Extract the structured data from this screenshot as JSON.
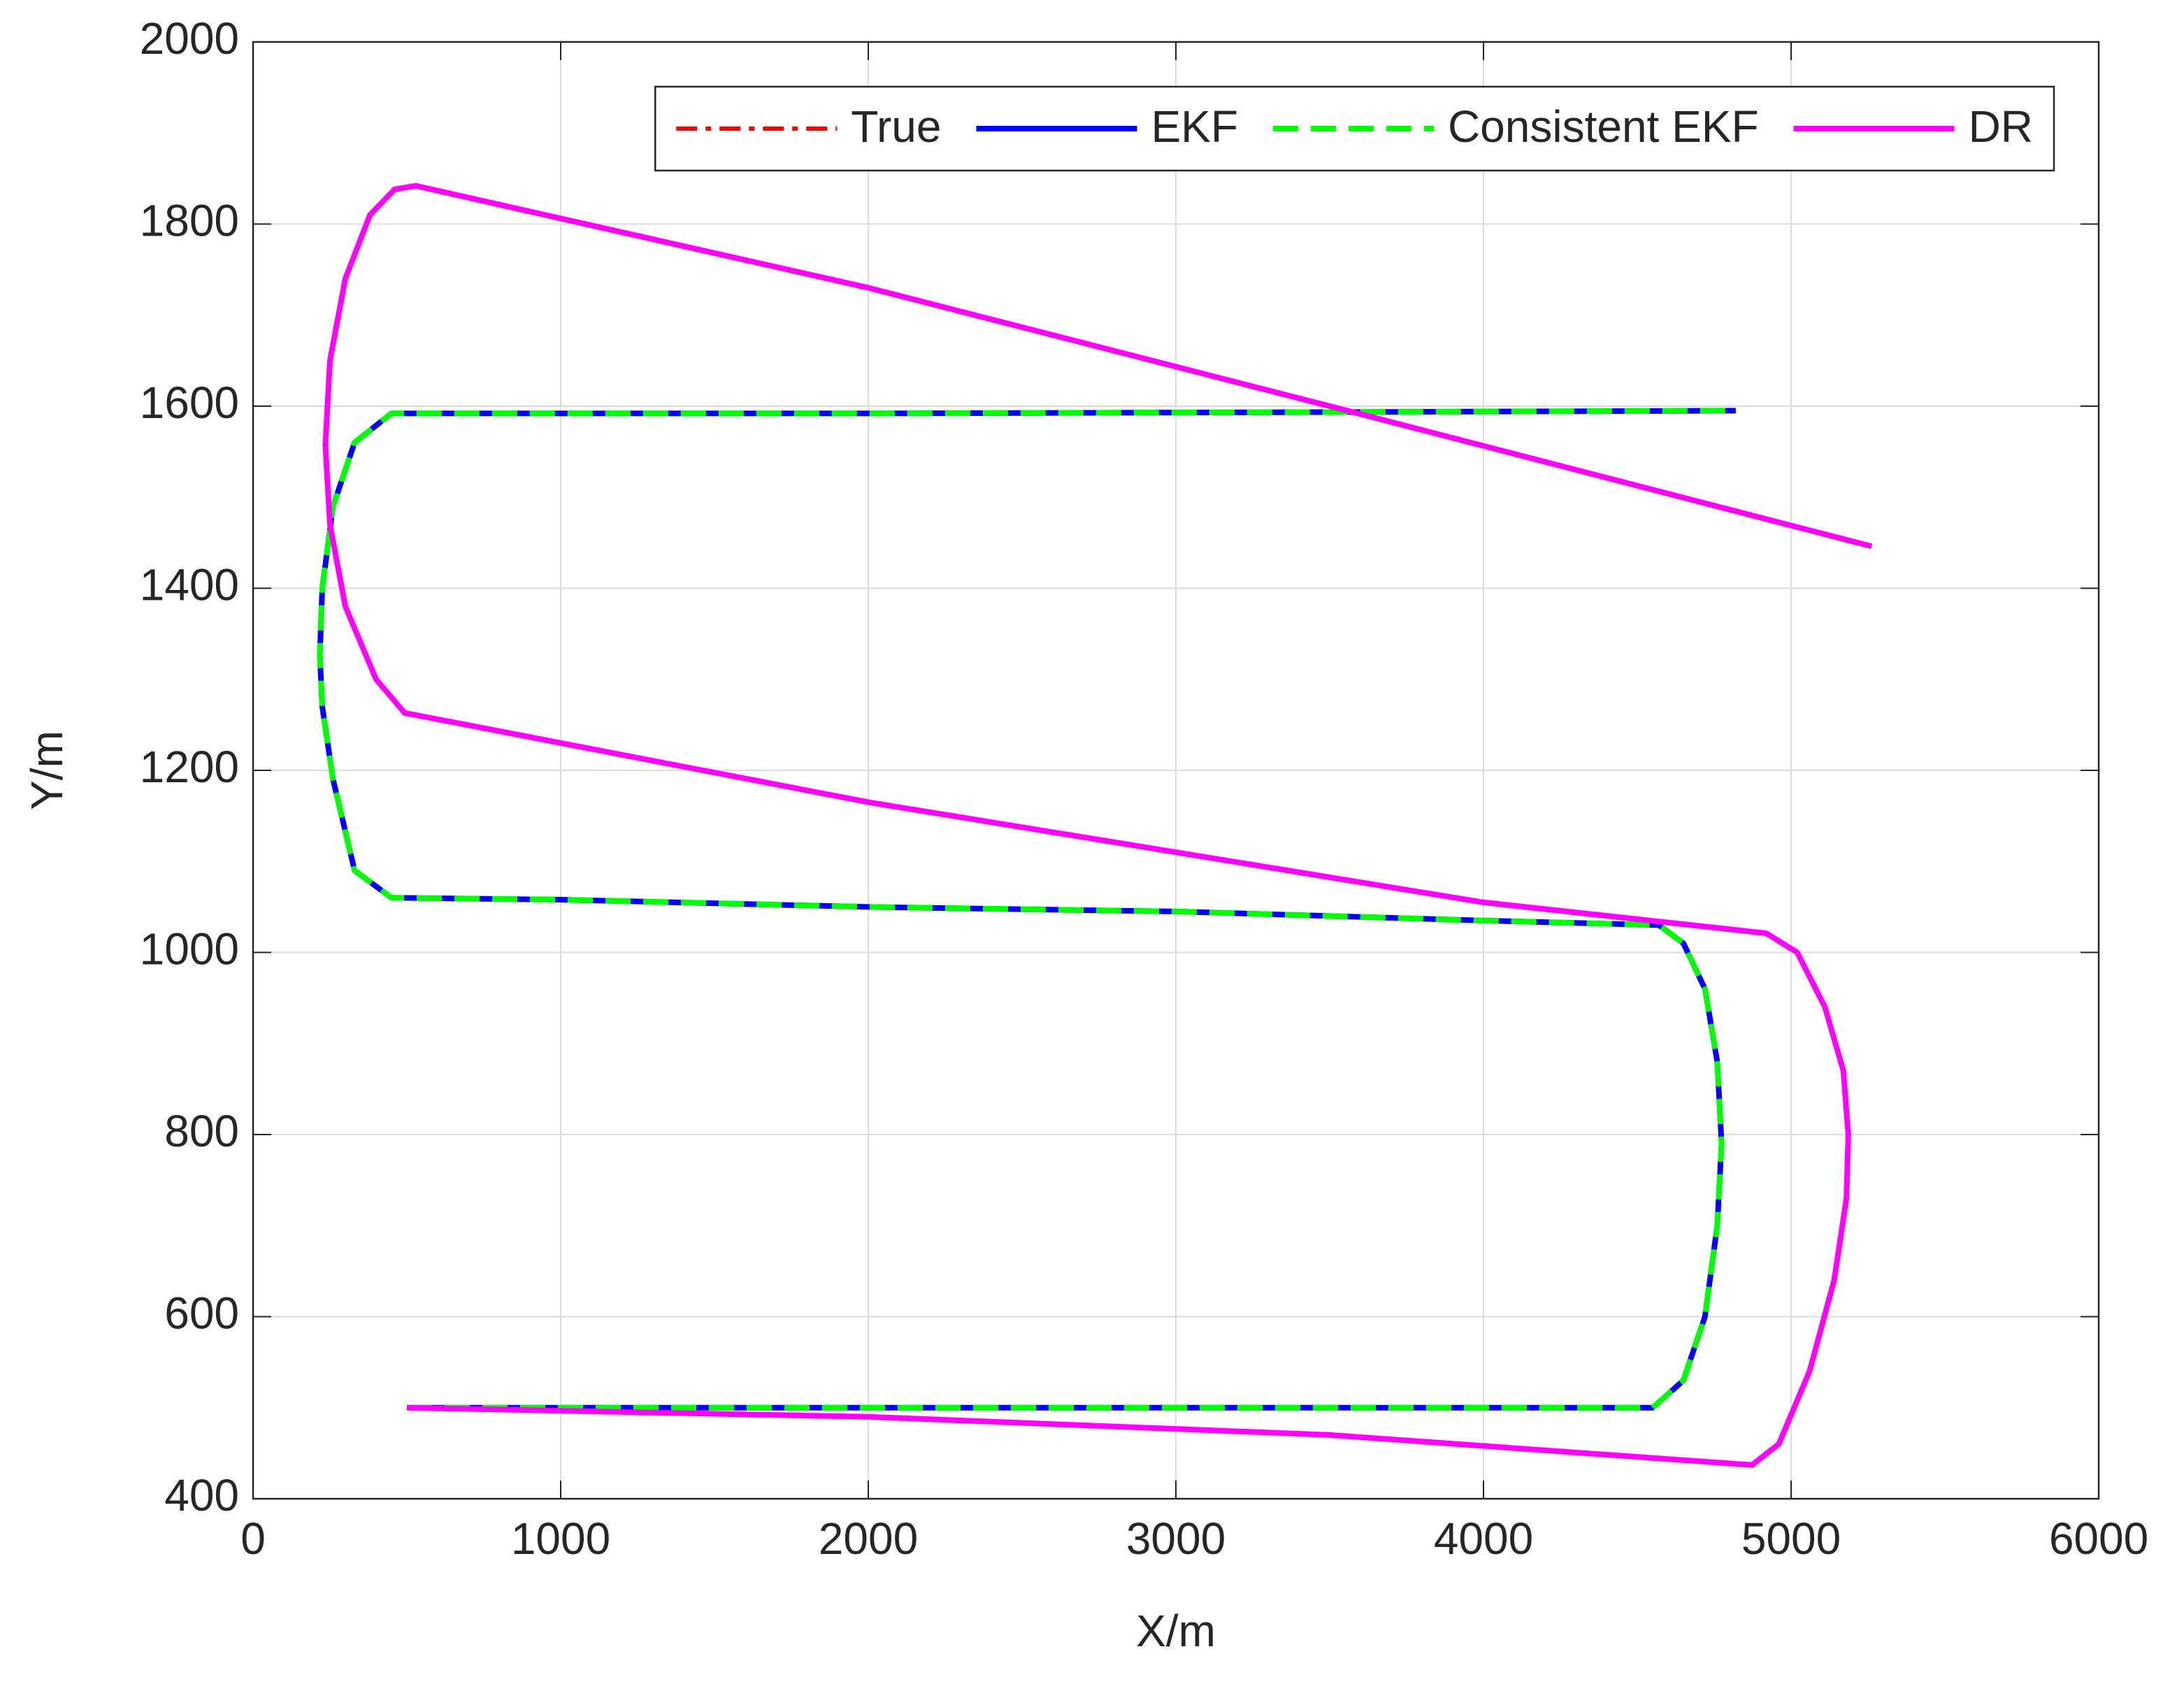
{
  "chart_data": {
    "type": "line",
    "xlabel": "X/m",
    "ylabel": "Y/m",
    "xlim": [
      0,
      6000
    ],
    "xticks": [
      0,
      1000,
      2000,
      3000,
      4000,
      5000,
      6000
    ],
    "ylim": [
      400,
      2000
    ],
    "yticks": [
      400,
      600,
      800,
      1000,
      1200,
      1400,
      1600,
      1800,
      2000
    ],
    "grid": true,
    "legend": "top-right",
    "series": [
      {
        "name": "True",
        "color": "#ff0000",
        "dash": "dashdot",
        "x": [
          500,
          4550,
          4650,
          4720,
          4760,
          4774,
          4760,
          4720,
          4650,
          4570,
          4000,
          3000,
          2000,
          1000,
          450,
          330,
          260,
          225,
          217,
          225,
          260,
          330,
          450,
          1000,
          2000,
          3000,
          4000,
          4820
        ],
        "y": [
          500,
          500,
          530,
          600,
          700,
          790,
          880,
          960,
          1010,
          1030,
          1035,
          1045,
          1050,
          1058,
          1060,
          1090,
          1190,
          1270,
          1327,
          1400,
          1490,
          1560,
          1592,
          1592,
          1592,
          1593,
          1594,
          1595
        ]
      },
      {
        "name": "EKF",
        "color": "#0000ff",
        "dash": "solid",
        "x": [
          500,
          4550,
          4650,
          4720,
          4760,
          4774,
          4760,
          4720,
          4650,
          4570,
          4000,
          3000,
          2000,
          1000,
          450,
          330,
          260,
          225,
          217,
          225,
          260,
          330,
          450,
          1000,
          2000,
          3000,
          4000,
          4820
        ],
        "y": [
          500,
          500,
          530,
          600,
          700,
          790,
          880,
          960,
          1010,
          1030,
          1035,
          1045,
          1050,
          1058,
          1060,
          1090,
          1190,
          1270,
          1327,
          1400,
          1490,
          1560,
          1592,
          1592,
          1592,
          1593,
          1594,
          1595
        ]
      },
      {
        "name": "Consistent EKF",
        "color": "#00ff00",
        "dash": "dashed",
        "x": [
          500,
          4550,
          4650,
          4720,
          4760,
          4774,
          4760,
          4720,
          4650,
          4570,
          4000,
          3000,
          2000,
          1000,
          450,
          330,
          260,
          225,
          217,
          225,
          260,
          330,
          450,
          1000,
          2000,
          3000,
          4000,
          4820
        ],
        "y": [
          500,
          500,
          530,
          600,
          700,
          790,
          880,
          960,
          1010,
          1030,
          1035,
          1045,
          1050,
          1058,
          1060,
          1090,
          1190,
          1270,
          1327,
          1400,
          1490,
          1560,
          1592,
          1592,
          1592,
          1593,
          1594,
          1595
        ]
      },
      {
        "name": "DR",
        "color": "#ff00ff",
        "dash": "solid",
        "x": [
          500,
          2000,
          3500,
          4873,
          4960,
          5060,
          5140,
          5180,
          5186,
          5170,
          5110,
          5020,
          4919,
          4000,
          3000,
          2000,
          1000,
          493,
          400,
          300,
          250,
          235,
          250,
          300,
          380,
          460,
          529,
          2000,
          3500,
          5262
        ],
        "y": [
          500,
          490,
          470,
          437,
          460,
          540,
          640,
          730,
          800,
          870,
          940,
          1000,
          1021,
          1055,
          1110,
          1165,
          1230,
          1263,
          1300,
          1380,
          1470,
          1557,
          1650,
          1740,
          1810,
          1838,
          1842,
          1730,
          1600,
          1446
        ]
      }
    ]
  }
}
